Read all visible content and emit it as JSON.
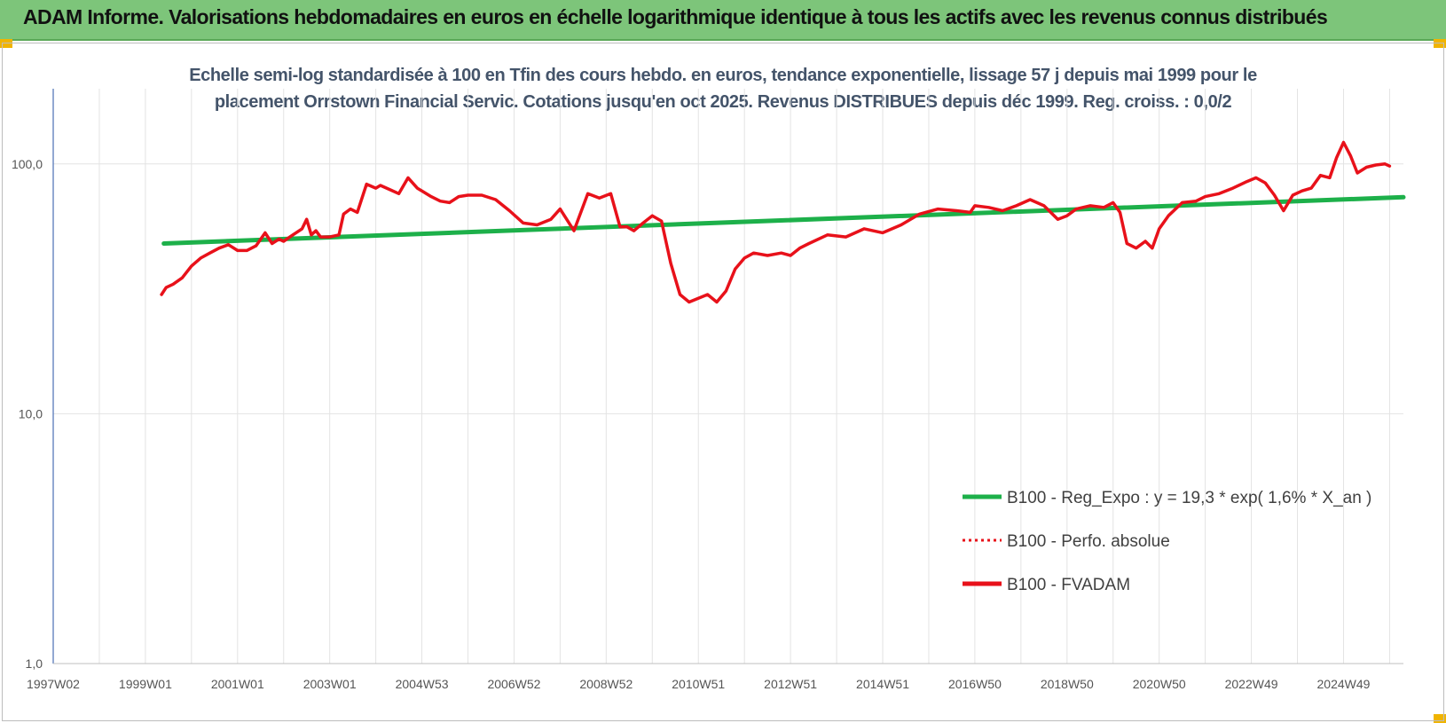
{
  "banner": {
    "title": "ADAM Informe. Valorisations hebdomadaires en euros en échelle logarithmique identique à tous les actifs avec les revenus connus distribués"
  },
  "colors": {
    "banner": "#7dc57a",
    "trend": "#1db04a",
    "fvadam": "#e8111a",
    "perfo": "#e8111a",
    "corner": "#f0b400"
  },
  "chart_data": {
    "type": "line",
    "title": "",
    "subtitle_lines": [
      "Echelle semi-log standardisée à 100 en Tfin des cours hebdo. en euros, tendance exponentielle, lissage 57 j depuis mai 1999 pour le",
      "placement Orrstown Financial Servic.  Cotations jusqu'en oct 2025. Revenus DISTRIBUES depuis déc 1999. Reg. croiss. : 0,0/2"
    ],
    "y_scale": "log",
    "ylim": [
      1,
      200
    ],
    "y_ticks": [
      "1,0",
      "10,0",
      "100,0"
    ],
    "y_tick_values": [
      1,
      10,
      100
    ],
    "xlim": [
      1997.0,
      2026.3
    ],
    "x_ticks": [
      "1997W02",
      "1999W01",
      "2001W01",
      "2003W01",
      "2004W53",
      "2006W52",
      "2008W52",
      "2010W51",
      "2012W51",
      "2014W51",
      "2016W50",
      "2018W50",
      "2020W50",
      "2022W49",
      "2024W49"
    ],
    "x_tick_values": [
      1997.0,
      1999.0,
      2001.0,
      2003.0,
      2005.0,
      2007.0,
      2009.0,
      2011.0,
      2013.0,
      2015.0,
      2017.0,
      2019.0,
      2021.0,
      2023.0,
      2025.0
    ],
    "grid": true,
    "legend_position": "bottom-right",
    "series": [
      {
        "name": "B100 - Reg_Expo : y = 19,3 * exp( 1,6% *  X_an )",
        "style": "solid",
        "color": "#1db04a",
        "x": [
          1999.4,
          2026.3
        ],
        "y": [
          48.0,
          73.6
        ]
      },
      {
        "name": "B100 - Perfo. absolue",
        "style": "dotted",
        "color": "#e8111a",
        "x": [],
        "y": []
      },
      {
        "name": "B100 - FVADAM",
        "style": "solid",
        "color": "#e8111a",
        "x": [
          1999.35,
          1999.45,
          1999.6,
          1999.8,
          2000.0,
          2000.2,
          2000.4,
          2000.6,
          2000.8,
          2001.0,
          2001.2,
          2001.4,
          2001.6,
          2001.75,
          2001.9,
          2002.0,
          2002.2,
          2002.4,
          2002.5,
          2002.6,
          2002.7,
          2002.8,
          2003.0,
          2003.2,
          2003.3,
          2003.45,
          2003.6,
          2003.8,
          2004.0,
          2004.1,
          2004.3,
          2004.5,
          2004.7,
          2004.9,
          2005.0,
          2005.2,
          2005.4,
          2005.6,
          2005.8,
          2006.0,
          2006.3,
          2006.6,
          2006.9,
          2007.2,
          2007.5,
          2007.8,
          2008.0,
          2008.3,
          2008.6,
          2008.85,
          2009.1,
          2009.3,
          2009.45,
          2009.6,
          2009.8,
          2010.0,
          2010.2,
          2010.4,
          2010.6,
          2010.8,
          2011.0,
          2011.2,
          2011.4,
          2011.6,
          2011.8,
          2012.0,
          2012.2,
          2012.5,
          2012.8,
          2013.0,
          2013.2,
          2013.4,
          2013.8,
          2014.2,
          2014.6,
          2015.0,
          2015.4,
          2015.8,
          2016.2,
          2016.6,
          2016.9,
          2017.0,
          2017.3,
          2017.6,
          2017.9,
          2018.2,
          2018.5,
          2018.8,
          2019.0,
          2019.2,
          2019.5,
          2019.8,
          2020.0,
          2020.15,
          2020.3,
          2020.5,
          2020.7,
          2020.85,
          2021.0,
          2021.2,
          2021.5,
          2021.8,
          2022.0,
          2022.3,
          2022.6,
          2022.9,
          2023.1,
          2023.3,
          2023.5,
          2023.7,
          2023.9,
          2024.1,
          2024.3,
          2024.5,
          2024.7,
          2024.85,
          2025.0,
          2025.15,
          2025.3,
          2025.5,
          2025.7,
          2025.9,
          2026.0
        ],
        "y": [
          30.0,
          32.0,
          33.0,
          35.0,
          39.0,
          42.0,
          44.0,
          46.0,
          47.5,
          45.0,
          45.0,
          47.0,
          53.0,
          48.0,
          50.0,
          49.0,
          52.0,
          55.0,
          60.0,
          52.0,
          54.0,
          51.0,
          51.0,
          52.0,
          63.0,
          66.0,
          64.0,
          83.0,
          80.0,
          82.0,
          79.0,
          76.0,
          88.0,
          80.0,
          78.0,
          74.0,
          71.0,
          70.0,
          74.0,
          75.0,
          75.0,
          72.0,
          65.0,
          58.0,
          57.0,
          60.0,
          66.0,
          54.0,
          76.0,
          73.0,
          76.0,
          56.0,
          56.0,
          54.0,
          58.0,
          62.0,
          59.0,
          40.0,
          30.0,
          28.0,
          29.0,
          30.0,
          28.0,
          31.0,
          38.0,
          42.0,
          44.0,
          43.0,
          44.0,
          43.0,
          46.0,
          48.0,
          52.0,
          51.0,
          55.0,
          53.0,
          57.0,
          63.0,
          66.0,
          65.0,
          64.0,
          68.0,
          67.0,
          65.0,
          68.0,
          72.0,
          68.0,
          60.0,
          62.0,
          66.0,
          68.0,
          67.0,
          70.0,
          64.0,
          48.0,
          46.0,
          49.0,
          46.0,
          55.0,
          62.0,
          70.0,
          71.0,
          74.0,
          76.0,
          80.0,
          85.0,
          88.0,
          84.0,
          75.0,
          65.0,
          75.0,
          78.0,
          80.0,
          90.0,
          88.0,
          106.0,
          122.0,
          108.0,
          92.0,
          97.0,
          99.0,
          100.0,
          98.0
        ]
      }
    ]
  }
}
